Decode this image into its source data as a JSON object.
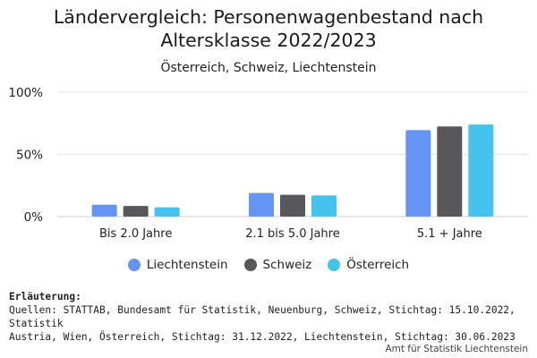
{
  "header": {
    "title_line1": "Ländervergleich: Personenwagenbestand nach",
    "title_line2": "Altersklasse 2022/2023",
    "subtitle": "Österreich, Schweiz, Liechtenstein"
  },
  "chart_data": {
    "type": "bar",
    "title": "Ländervergleich: Personenwagenbestand nach Altersklasse 2022/2023",
    "subtitle": "Österreich, Schweiz, Liechtenstein",
    "categories": [
      "Bis 2.0 Jahre",
      "2.1 bis 5.0 Jahre",
      "5.1 + Jahre"
    ],
    "series": [
      {
        "name": "Liechtenstein",
        "color": "#6495f5",
        "values": [
          9.5,
          19,
          69.5
        ]
      },
      {
        "name": "Schweiz",
        "color": "#58585a",
        "values": [
          8.5,
          17.5,
          72.5
        ]
      },
      {
        "name": "Österreich",
        "color": "#45c3ef",
        "values": [
          7.5,
          17,
          74
        ]
      }
    ],
    "ylim": [
      0,
      100
    ],
    "yticks": [
      0,
      50,
      100
    ],
    "ytick_labels": [
      "0%",
      "50%",
      "100%"
    ],
    "xlabel": "",
    "ylabel": "",
    "grid": true,
    "legend_position": "bottom"
  },
  "notes": {
    "title": "Erläuterung:",
    "line1": "Quellen: STATTAB, Bundesamt für Statistik, Neuenburg, Schweiz, Stichtag: 15.10.2022, Statistik",
    "line2": "Austria, Wien, Österreich, Stichtag: 31.12.2022, Liechtenstein, Stichtag: 30.06.2023"
  },
  "credit": "Amt für Statistik Liechtenstein"
}
